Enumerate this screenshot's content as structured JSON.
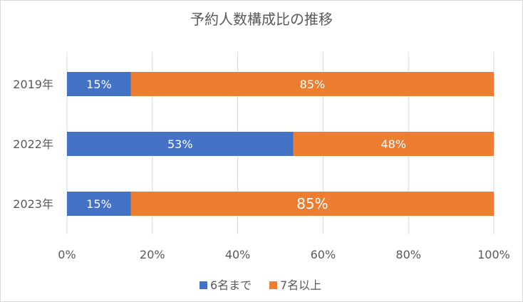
{
  "chart_data": {
    "type": "bar",
    "orientation": "horizontal",
    "stacked": true,
    "title": "予約人数構成比の推移",
    "categories": [
      "2019年",
      "2022年",
      "2023年"
    ],
    "series": [
      {
        "name": "6名まで",
        "color": "#4472c4",
        "values": [
          15,
          53,
          15
        ],
        "labels": [
          "15%",
          "53%",
          "15%"
        ]
      },
      {
        "name": "7名以上",
        "color": "#ed7d31",
        "values": [
          85,
          48,
          85
        ],
        "labels": [
          "85%",
          "48%",
          "85%"
        ]
      }
    ],
    "xlim": [
      0,
      100
    ],
    "xticks": [
      "0%",
      "20%",
      "40%",
      "60%",
      "80%",
      "100%"
    ],
    "grid": true,
    "legend_position": "bottom"
  }
}
